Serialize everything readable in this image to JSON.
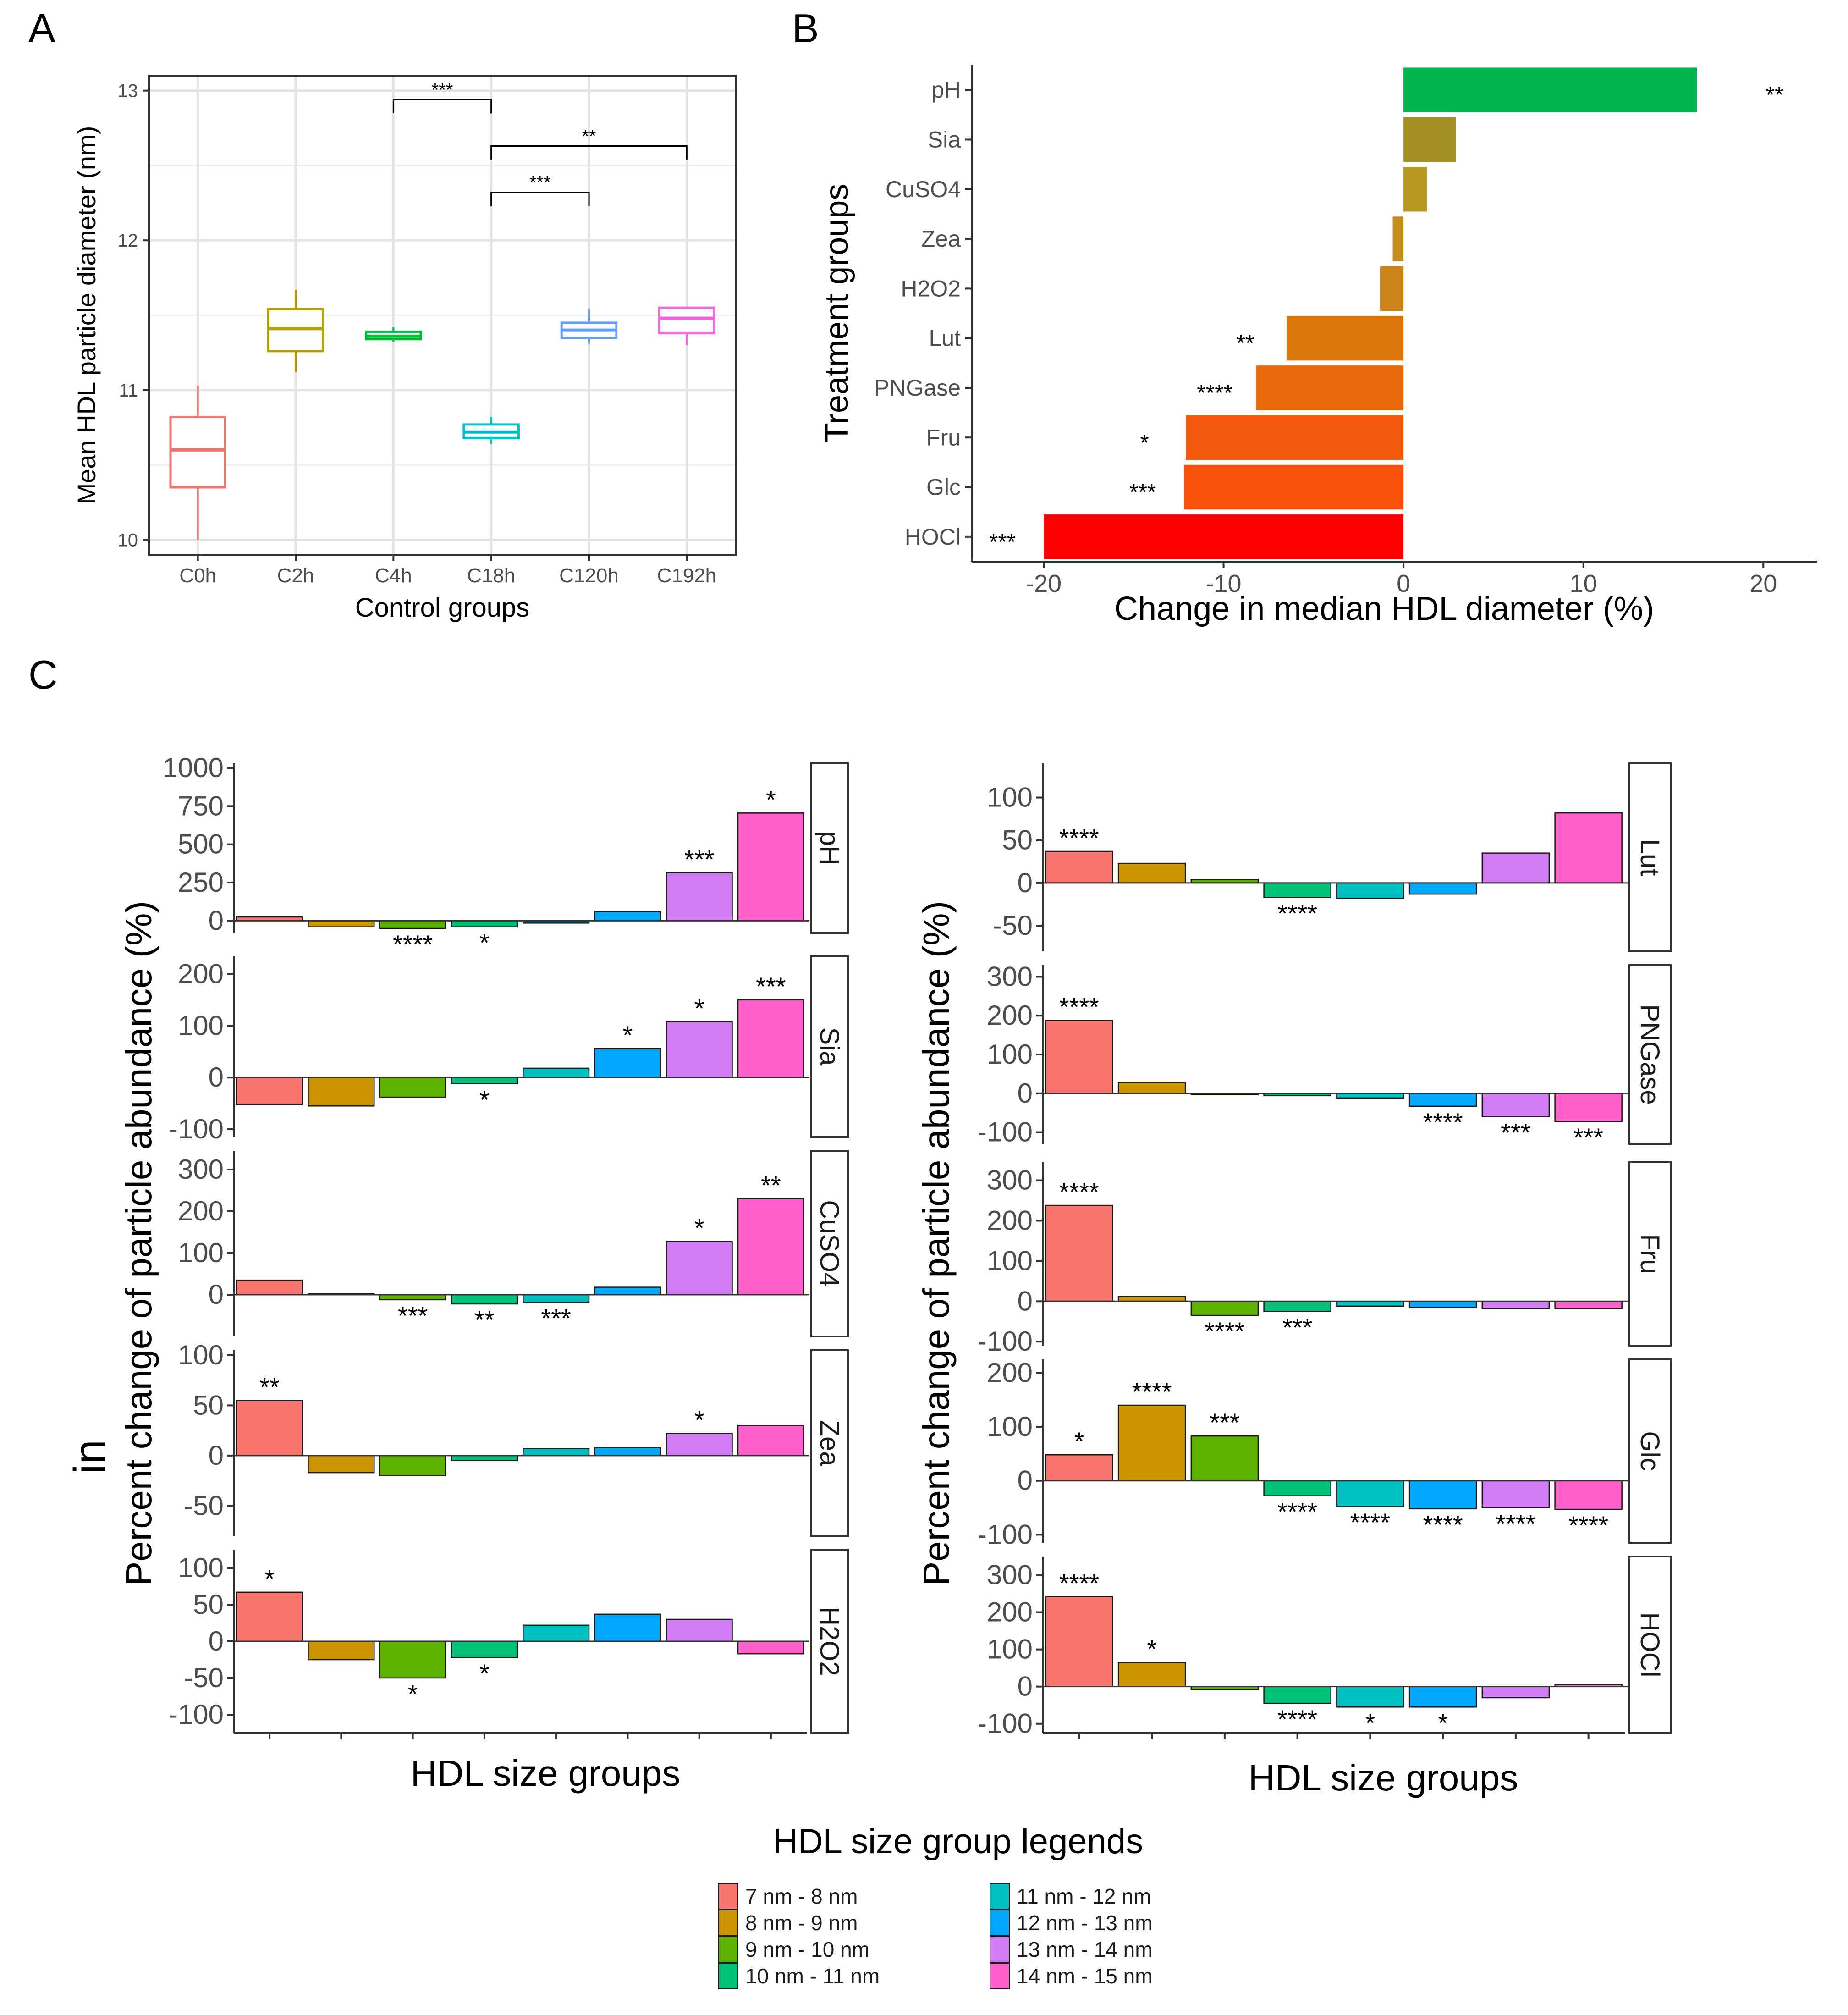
{
  "panel_labels": {
    "a": "A",
    "b": "B",
    "c": "C"
  },
  "stray_text": "in",
  "chart_data": [
    {
      "id": "A",
      "type": "box",
      "xlabel": "Control groups",
      "ylabel": "Mean HDL particle diameter (nm)",
      "ylim": [
        9.9,
        13.1
      ],
      "yticks": [
        10,
        11,
        12,
        13
      ],
      "categories": [
        "C0h",
        "C2h",
        "C4h",
        "C18h",
        "C120h",
        "C192h"
      ],
      "colors": [
        "#F8766D",
        "#B79F00",
        "#00BA38",
        "#00BFC4",
        "#619CFF",
        "#F564E3"
      ],
      "boxes": [
        {
          "min": 10.0,
          "q1": 10.35,
          "median": 10.6,
          "q3": 10.82,
          "max": 11.03
        },
        {
          "min": 11.12,
          "q1": 11.26,
          "median": 11.41,
          "q3": 11.54,
          "max": 11.67
        },
        {
          "min": 11.32,
          "q1": 11.34,
          "median": 11.36,
          "q3": 11.39,
          "max": 11.42
        },
        {
          "min": 10.64,
          "q1": 10.68,
          "median": 10.72,
          "q3": 10.77,
          "max": 10.82
        },
        {
          "min": 11.31,
          "q1": 11.35,
          "median": 11.4,
          "q3": 11.45,
          "max": 11.54
        },
        {
          "min": 11.3,
          "q1": 11.38,
          "median": 11.48,
          "q3": 11.55,
          "max": 11.55
        }
      ],
      "brackets": [
        {
          "from": "C4h",
          "to": "C18h",
          "y": 12.94,
          "label": "***"
        },
        {
          "from": "C18h",
          "to": "C192h",
          "y": 12.63,
          "label": "**"
        },
        {
          "from": "C18h",
          "to": "C120h",
          "y": 12.32,
          "label": "***"
        }
      ]
    },
    {
      "id": "B",
      "type": "bar",
      "orientation": "horizontal",
      "xlabel": "Change in median HDL diameter (%)",
      "ylabel": "Treatment groups",
      "xlim": [
        -24,
        23
      ],
      "xticks": [
        -20,
        -10,
        0,
        10,
        20
      ],
      "categories": [
        "pH",
        "Sia",
        "CuSO4",
        "Zea",
        "H2O2",
        "Lut",
        "PNGase",
        "Fru",
        "Glc",
        "HOCl"
      ],
      "values": [
        16.3,
        2.9,
        1.3,
        -0.6,
        -1.3,
        -6.5,
        -8.2,
        -12.1,
        -12.2,
        -20.0
      ],
      "colors": [
        "#00B34D",
        "#A39126",
        "#B89A21",
        "#C38F1B",
        "#CC8418",
        "#DE780A",
        "#E96A0A",
        "#F05A0A",
        "#FA500A",
        "#FF0000"
      ],
      "significance": [
        "**",
        "",
        "",
        "",
        "",
        "**",
        "****",
        "*",
        "***",
        "***"
      ]
    }
  ],
  "panel_c": {
    "y_title": "Percent change of particle abundance (%)",
    "x_title": "HDL size groups",
    "legend_title": "HDL size group legends",
    "size_groups": [
      "7 nm - 8 nm",
      "8 nm - 9 nm",
      "9 nm - 10 nm",
      "10 nm - 11 nm",
      "11 nm - 12 nm",
      "12 nm - 13 nm",
      "13 nm - 14 nm",
      "14 nm - 15 nm"
    ],
    "colors": [
      "#F8766D",
      "#CD9600",
      "#5BB300",
      "#00C176",
      "#00C0C4",
      "#00A9FF",
      "#D17CF5",
      "#FF61CC"
    ],
    "left": [
      {
        "name": "pH",
        "ylim": [
          -80,
          1030
        ],
        "ticks": [
          0,
          250,
          500,
          750,
          1000
        ],
        "values": [
          25,
          -40,
          -50,
          -40,
          -15,
          60,
          315,
          705
        ],
        "sig": [
          "",
          "",
          "****",
          "*",
          "",
          "",
          "***",
          "*"
        ]
      },
      {
        "name": "Sia",
        "ylim": [
          -115,
          235
        ],
        "ticks": [
          -100,
          0,
          100,
          200
        ],
        "values": [
          -52,
          -55,
          -38,
          -12,
          18,
          56,
          108,
          150
        ],
        "sig": [
          "",
          "",
          "",
          "*",
          "",
          "*",
          "*",
          "***"
        ]
      },
      {
        "name": "CuSO4",
        "ylim": [
          -100,
          345
        ],
        "ticks": [
          0,
          100,
          200,
          300
        ],
        "values": [
          35,
          3,
          -12,
          -22,
          -18,
          18,
          128,
          230
        ],
        "sig": [
          "",
          "",
          "***",
          "**",
          "***",
          "",
          "*",
          "**"
        ]
      },
      {
        "name": "Zea",
        "ylim": [
          -80,
          105
        ],
        "ticks": [
          -50,
          0,
          50,
          100
        ],
        "values": [
          55,
          -17,
          -20,
          -5,
          7,
          8,
          22,
          30
        ],
        "sig": [
          "**",
          "",
          "",
          "",
          "",
          "",
          "*",
          ""
        ]
      },
      {
        "name": "H2O2",
        "ylim": [
          -125,
          125
        ],
        "ticks": [
          -100,
          -50,
          0,
          50,
          100
        ],
        "values": [
          67,
          -25,
          -50,
          -22,
          22,
          37,
          30,
          -17
        ],
        "sig": [
          "*",
          "",
          "*",
          "*",
          "",
          "",
          "",
          ""
        ]
      }
    ],
    "right": [
      {
        "name": "Lut",
        "ylim": [
          -80,
          140
        ],
        "ticks": [
          -50,
          0,
          50,
          100
        ],
        "values": [
          37,
          23,
          4,
          -17,
          -18,
          -13,
          35,
          82
        ],
        "sig": [
          "****",
          "",
          "",
          "****",
          "",
          "",
          "",
          ""
        ]
      },
      {
        "name": "PNGase",
        "ylim": [
          -130,
          330
        ],
        "ticks": [
          -100,
          0,
          100,
          200,
          300
        ],
        "values": [
          188,
          28,
          -3,
          -6,
          -12,
          -33,
          -60,
          -72
        ],
        "sig": [
          "****",
          "",
          "",
          "",
          "",
          "****",
          "***",
          "***"
        ]
      },
      {
        "name": "Fru",
        "ylim": [
          -110,
          345
        ],
        "ticks": [
          -100,
          0,
          100,
          200,
          300
        ],
        "values": [
          238,
          12,
          -35,
          -25,
          -12,
          -15,
          -18,
          -18
        ],
        "sig": [
          "****",
          "",
          "****",
          "***",
          "",
          "",
          "",
          ""
        ]
      },
      {
        "name": "Glc",
        "ylim": [
          -115,
          225
        ],
        "ticks": [
          -100,
          0,
          100,
          200
        ],
        "values": [
          48,
          140,
          83,
          -28,
          -48,
          -52,
          -50,
          -53
        ],
        "sig": [
          "*",
          "****",
          "***",
          "****",
          "****",
          "****",
          "****",
          "****"
        ]
      },
      {
        "name": "HOCl",
        "ylim": [
          -125,
          350
        ],
        "ticks": [
          -100,
          0,
          100,
          200,
          300
        ],
        "values": [
          242,
          65,
          -8,
          -45,
          -55,
          -55,
          -30,
          5
        ],
        "sig": [
          "****",
          "*",
          "",
          "****",
          "*",
          "*",
          "",
          ""
        ]
      }
    ]
  }
}
